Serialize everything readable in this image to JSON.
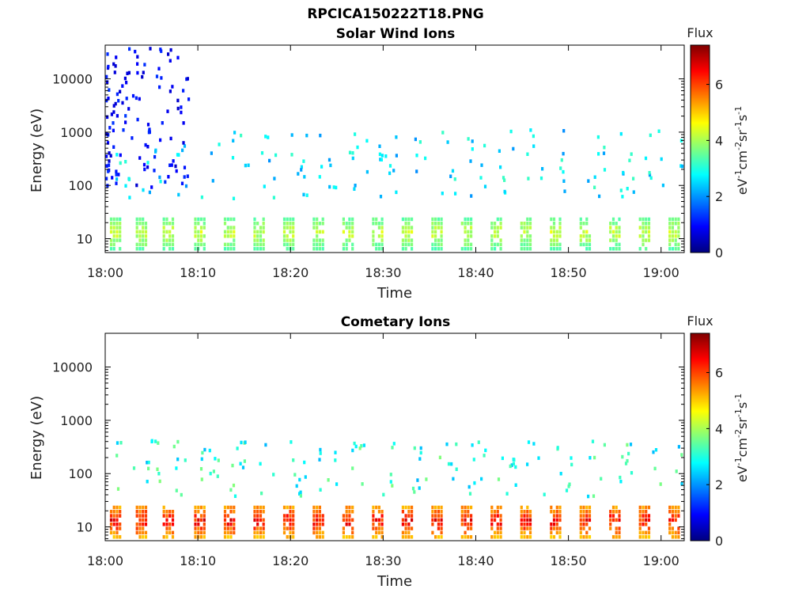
{
  "figure": {
    "title": "RPCICA150222T18.PNG"
  },
  "colors": {
    "colormap": [
      "#00007f",
      "#0000ff",
      "#007fff",
      "#00ffff",
      "#7fff7f",
      "#ffff00",
      "#ff7f00",
      "#ff0000",
      "#7f0000"
    ]
  },
  "chart_data": [
    {
      "type": "heatmap",
      "title": "Solar Wind Ions",
      "xlabel": "Time",
      "ylabel": "Energy (eV)",
      "y_scale": "log",
      "ylim": [
        5.5,
        43000
      ],
      "y_ticks": [
        10,
        100,
        1000,
        10000
      ],
      "y_tick_labels": [
        "10",
        "100",
        "1000",
        "10000"
      ],
      "xlim": [
        "18:00",
        "19:02.5"
      ],
      "x_ticks": [
        "18:00",
        "18:10",
        "18:20",
        "18:30",
        "18:40",
        "18:50",
        "19:00"
      ],
      "x_tick_labels": [
        "18:00",
        "18:10",
        "18:20",
        "18:30",
        "18:40",
        "18:50",
        "19:00"
      ],
      "colorbar": {
        "label": "Flux",
        "unit": "eV-1cm-2sr-1s-1",
        "range": [
          0,
          7.4
        ],
        "ticks": [
          0,
          2,
          4,
          6
        ],
        "tick_labels": [
          "0",
          "2",
          "4",
          "6"
        ]
      },
      "low_energy_band": {
        "energy_range": [
          7,
          28
        ],
        "flux_range": [
          2.8,
          4.6
        ]
      },
      "sweeps_start_min": [
        0.5,
        3.3,
        6.2,
        9.6,
        12.8,
        16.0,
        19.2,
        22.4,
        25.6,
        28.8,
        32.0,
        35.2,
        38.4,
        41.6,
        44.8,
        48.0,
        51.2,
        54.4,
        57.6,
        60.8
      ],
      "sweep_energy_range": [
        60,
        1200
      ],
      "sweep_flux": 2.6,
      "early_scatter": {
        "time_range_min": [
          0,
          9
        ],
        "energy_range": [
          100,
          40000
        ],
        "flux": 0.9
      }
    },
    {
      "type": "heatmap",
      "title": "Cometary Ions",
      "xlabel": "Time",
      "ylabel": "Energy (eV)",
      "y_scale": "log",
      "ylim": [
        5.5,
        43000
      ],
      "y_ticks": [
        10,
        100,
        1000,
        10000
      ],
      "y_tick_labels": [
        "10",
        "100",
        "1000",
        "10000"
      ],
      "xlim": [
        "18:00",
        "19:02.5"
      ],
      "x_ticks": [
        "18:00",
        "18:10",
        "18:20",
        "18:30",
        "18:40",
        "18:50",
        "19:00"
      ],
      "x_tick_labels": [
        "18:00",
        "18:10",
        "18:20",
        "18:30",
        "18:40",
        "18:50",
        "19:00"
      ],
      "colorbar": {
        "label": "Flux",
        "unit": "eV-1cm-2sr-1s-1",
        "range": [
          0,
          7.4
        ],
        "ticks": [
          0,
          2,
          4,
          6
        ],
        "tick_labels": [
          "0",
          "2",
          "4",
          "6"
        ]
      },
      "low_energy_band": {
        "energy_range": [
          7,
          30
        ],
        "flux_range": [
          4.2,
          7.0
        ]
      },
      "sweeps_start_min": [
        0.5,
        3.3,
        6.2,
        9.6,
        12.8,
        16.0,
        19.2,
        22.4,
        25.6,
        28.8,
        32.0,
        35.2,
        38.4,
        41.6,
        44.8,
        48.0,
        51.2,
        54.4,
        57.6,
        60.8
      ],
      "sweep_energy_range": [
        40,
        450
      ],
      "sweep_flux": 3.0,
      "early_scatter": {
        "time_range_min": [
          0,
          0
        ],
        "energy_range": [
          0,
          0
        ],
        "flux": 0
      }
    }
  ]
}
